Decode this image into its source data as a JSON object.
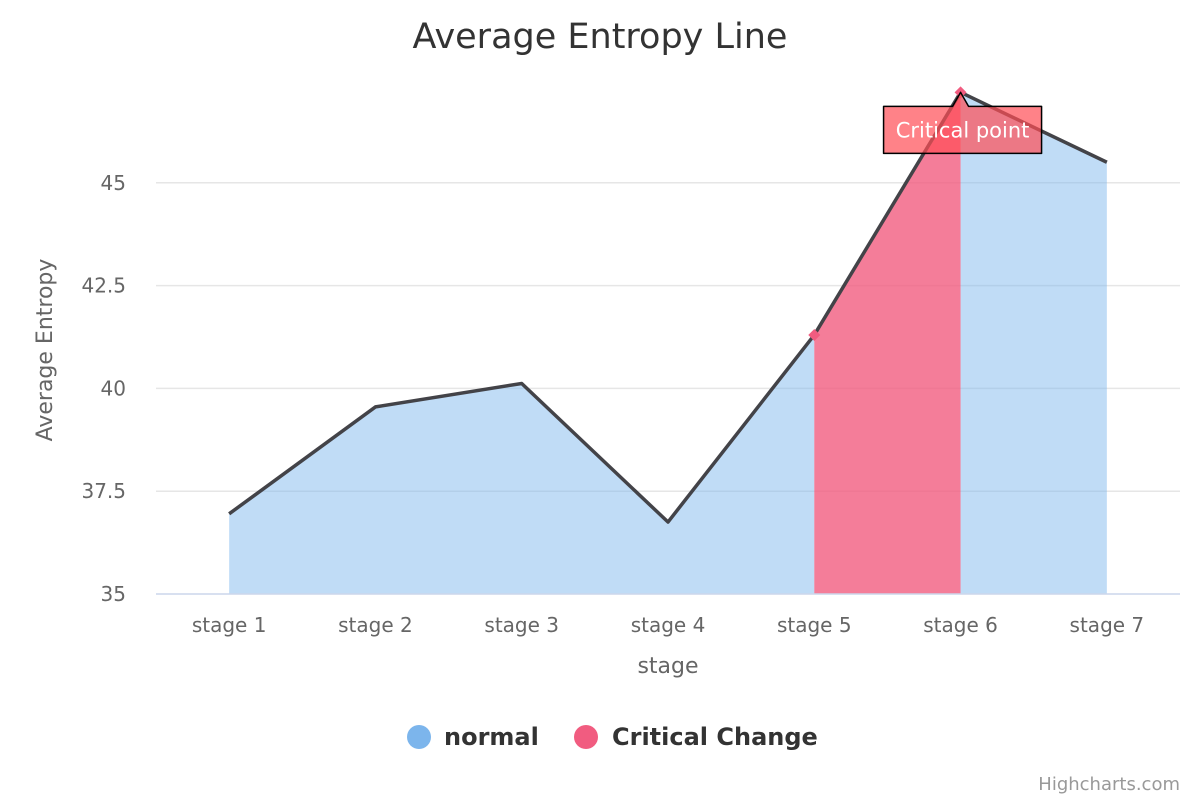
{
  "chart_data": {
    "type": "area",
    "title": "Average Entropy Line",
    "xlabel": "stage",
    "ylabel": "Average Entropy",
    "categories": [
      "stage 1",
      "stage 2",
      "stage 3",
      "stage 4",
      "stage 5",
      "stage 6",
      "stage 7"
    ],
    "series": [
      {
        "name": "normal",
        "values": [
          36.95,
          39.55,
          40.12,
          36.75,
          41.3,
          47.2,
          45.5
        ]
      }
    ],
    "critical_change": {
      "name": "Critical Change",
      "from_category": "stage 5",
      "to_category": "stage 6"
    },
    "ylim": [
      35,
      47.5
    ],
    "yticks": [
      "35",
      "37.5",
      "40",
      "42.5",
      "45"
    ],
    "yticks_values": [
      35,
      37.5,
      40,
      42.5,
      45
    ],
    "grid": true,
    "legend_position": "bottom-center",
    "annotation": {
      "text": "Critical point",
      "category": "stage 6"
    },
    "colors": {
      "normal": "#7cb5ec",
      "critical": "#f15c80",
      "line": "#434348",
      "annotation_bg": "#ff4d55"
    }
  },
  "credits": "Highcharts.com"
}
